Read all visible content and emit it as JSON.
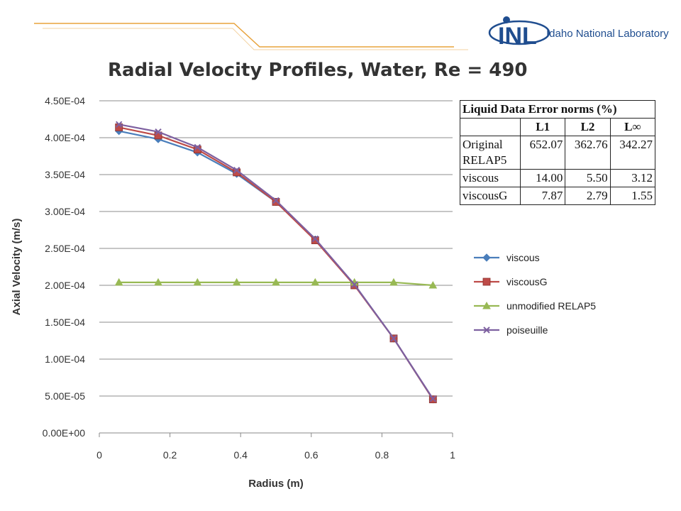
{
  "header": {
    "logo_text": "INL",
    "org_name": "Idaho National Laboratory",
    "accent_color": "#e8a33c",
    "brand_color": "#1f4d8f"
  },
  "chart_data": {
    "type": "line",
    "title": "Radial Velocity Profiles, Water, Re = 490",
    "xlabel": "Radius (m)",
    "ylabel": "Axial Velocity (m/s)",
    "xlim": [
      0,
      1
    ],
    "ylim": [
      0,
      0.00045
    ],
    "xticks": [
      0,
      0.2,
      0.4,
      0.6,
      0.8,
      1
    ],
    "xtick_labels": [
      "0",
      "0.2",
      "0.4",
      "0.6",
      "0.8",
      "1"
    ],
    "yticks": [
      0,
      5e-05,
      0.0001,
      0.00015,
      0.0002,
      0.00025,
      0.0003,
      0.00035,
      0.0004,
      0.00045
    ],
    "ytick_labels": [
      "0.00E+00",
      "5.00E-05",
      "1.00E-04",
      "1.50E-04",
      "2.00E-04",
      "2.50E-04",
      "3.00E-04",
      "3.50E-04",
      "4.00E-04",
      "4.50E-04"
    ],
    "grid": "horizontal",
    "legend_position": "right",
    "x": [
      0.0556,
      0.1667,
      0.2778,
      0.3889,
      0.5,
      0.6111,
      0.7222,
      0.8333,
      0.9444
    ],
    "series": [
      {
        "name": "viscous",
        "color": "#4a7ebb",
        "marker": "diamond",
        "values": [
          0.000409,
          0.000398,
          0.00038,
          0.000351,
          0.000313,
          0.000262,
          0.000201,
          0.000128,
          4.55e-05
        ]
      },
      {
        "name": "viscousG",
        "color": "#be4b48",
        "marker": "square",
        "values": [
          0.000414,
          0.000403,
          0.000384,
          0.000353,
          0.000313,
          0.000261,
          0.0002,
          0.000128,
          4.55e-05
        ]
      },
      {
        "name": "unmodified RELAP5",
        "color": "#98b954",
        "marker": "triangle",
        "values": [
          0.000204,
          0.000204,
          0.000204,
          0.000204,
          0.000204,
          0.000204,
          0.000204,
          0.000204,
          0.0002
        ]
      },
      {
        "name": "poiseuille",
        "color": "#7d60a0",
        "marker": "x",
        "values": [
          0.000418,
          0.000408,
          0.000387,
          0.000356,
          0.000315,
          0.000263,
          0.000201,
          0.000128,
          4.63e-05
        ]
      }
    ]
  },
  "error_table": {
    "caption": "Liquid Data Error norms (%)",
    "columns": [
      "L1",
      "L2",
      "L∞"
    ],
    "rows": [
      {
        "label": "Original RELAP5",
        "values": [
          "652.07",
          "362.76",
          "342.27"
        ]
      },
      {
        "label": "viscous",
        "values": [
          "14.00",
          "5.50",
          "3.12"
        ]
      },
      {
        "label": "viscousG",
        "values": [
          "7.87",
          "2.79",
          "1.55"
        ]
      }
    ]
  }
}
